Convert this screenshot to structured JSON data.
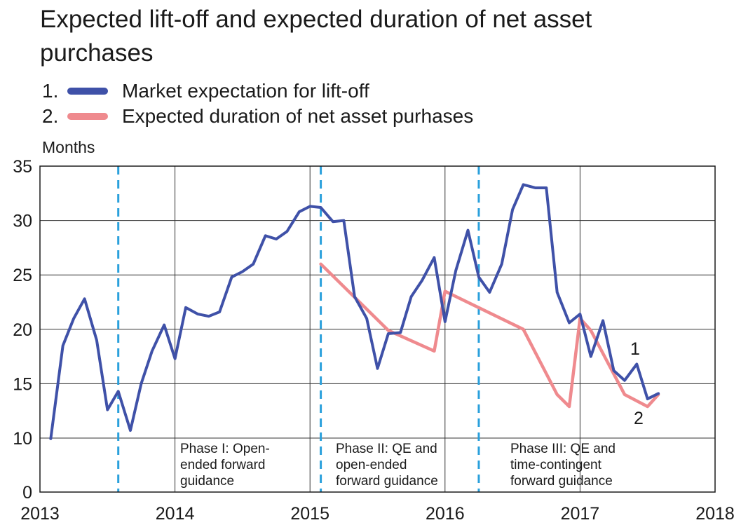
{
  "chart_data": {
    "type": "line",
    "title": "Expected lift-off and expected duration of net asset purchases",
    "ylabel": "Months",
    "xlabel": "",
    "ylim": [
      0,
      35
    ],
    "xlim": [
      2013,
      2018
    ],
    "ytick_values": [
      0,
      10,
      15,
      20,
      25,
      30,
      35
    ],
    "ytick_labels": [
      "0",
      "10",
      "15",
      "20",
      "25",
      "30",
      "35"
    ],
    "xtick_values": [
      2013,
      2014,
      2015,
      2016,
      2017,
      2018
    ],
    "xtick_labels": [
      "2013",
      "2014",
      "2015",
      "2016",
      "2017",
      "2018"
    ],
    "grid": true,
    "legend_placement": "above",
    "series": [
      {
        "name": "Market expectation for lift-off",
        "number": "1.",
        "color": "#3f51a8",
        "x": [
          2013.08,
          2013.17,
          2013.25,
          2013.33,
          2013.42,
          2013.5,
          2013.58,
          2013.67,
          2013.75,
          2013.83,
          2013.92,
          2014.0,
          2014.08,
          2014.17,
          2014.25,
          2014.33,
          2014.42,
          2014.5,
          2014.58,
          2014.67,
          2014.75,
          2014.83,
          2014.92,
          2015.0,
          2015.08,
          2015.17,
          2015.25,
          2015.33,
          2015.42,
          2015.5,
          2015.58,
          2015.67,
          2015.75,
          2015.83,
          2015.92,
          2016.0,
          2016.08,
          2016.17,
          2016.25,
          2016.33,
          2016.42,
          2016.5,
          2016.58,
          2016.67,
          2016.75,
          2016.83,
          2016.92,
          2017.0,
          2017.08,
          2017.17,
          2017.25,
          2017.33,
          2017.42,
          2017.5,
          2017.58
        ],
        "values": [
          9.9,
          18.5,
          21.0,
          22.8,
          19.0,
          12.6,
          14.3,
          10.7,
          15.0,
          18.0,
          20.4,
          17.3,
          22.0,
          21.4,
          21.2,
          21.6,
          24.8,
          25.3,
          26.0,
          28.6,
          28.3,
          29.0,
          30.8,
          31.3,
          31.2,
          29.9,
          30.0,
          23.0,
          21.0,
          16.4,
          19.6,
          19.7,
          23.0,
          24.5,
          26.6,
          20.7,
          25.4,
          29.1,
          24.8,
          23.4,
          26.0,
          31.0,
          33.3,
          33.0,
          33.0,
          23.4,
          20.6,
          21.4,
          17.5,
          20.8,
          16.2,
          15.3,
          16.8,
          13.6,
          14.1
        ]
      },
      {
        "name": "Expected duration of net asset purhases",
        "number": "2.",
        "color": "#ef8a8e",
        "x": [
          2015.08,
          2015.58,
          2015.92,
          2016.0,
          2016.58,
          2016.83,
          2016.92,
          2017.0,
          2017.08,
          2017.33,
          2017.5,
          2017.58
        ],
        "values": [
          26.0,
          19.9,
          18.0,
          23.5,
          20.0,
          14.0,
          12.9,
          21.0,
          19.9,
          14.0,
          12.9,
          14.0
        ]
      }
    ],
    "vlines": [
      2013.58,
      2015.08,
      2016.25
    ],
    "vline_color": "#2aa0dc",
    "annotations": {
      "phase1": [
        "Phase I: Open-",
        "ended forward",
        "guidance"
      ],
      "phase2": [
        "Phase II: QE and",
        "open-ended",
        "forward guidance"
      ],
      "phase3": [
        "Phase III: QE and",
        "time-contingent",
        "forward guidance"
      ],
      "label1": "1",
      "label2": "2"
    }
  }
}
